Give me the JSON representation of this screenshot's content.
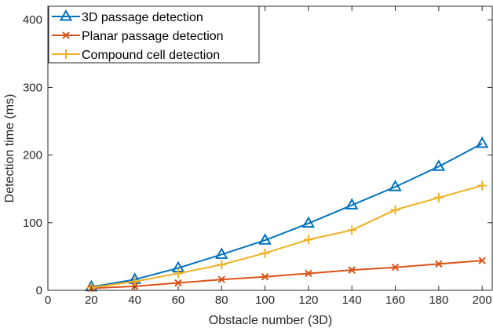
{
  "chart_data": {
    "type": "line",
    "title": "",
    "xlabel": "Obstacle number (3D)",
    "ylabel": "Detection time (ms)",
    "x": [
      20,
      40,
      60,
      80,
      100,
      120,
      140,
      160,
      180,
      200
    ],
    "xlim": [
      0,
      205
    ],
    "ylim": [
      0,
      420
    ],
    "xticks": [
      0,
      20,
      40,
      60,
      80,
      100,
      120,
      140,
      160,
      180,
      200
    ],
    "yticks": [
      0,
      100,
      200,
      300,
      400
    ],
    "grid": false,
    "legend_position": "top-left",
    "series": [
      {
        "name": "3D passage detection",
        "color": "#0072BD",
        "marker": "triangle",
        "values": [
          5,
          16,
          33,
          53,
          74,
          99,
          126,
          153,
          183,
          217
        ]
      },
      {
        "name": "Planar passage detection",
        "color": "#D95319",
        "marker": "x",
        "values": [
          3,
          6,
          11,
          16,
          20,
          25,
          30,
          34,
          39,
          44
        ]
      },
      {
        "name": "Compound cell detection",
        "color": "#EDB120",
        "marker": "plus",
        "values": [
          4,
          13,
          25,
          38,
          55,
          75,
          89,
          119,
          137,
          155
        ]
      }
    ]
  }
}
